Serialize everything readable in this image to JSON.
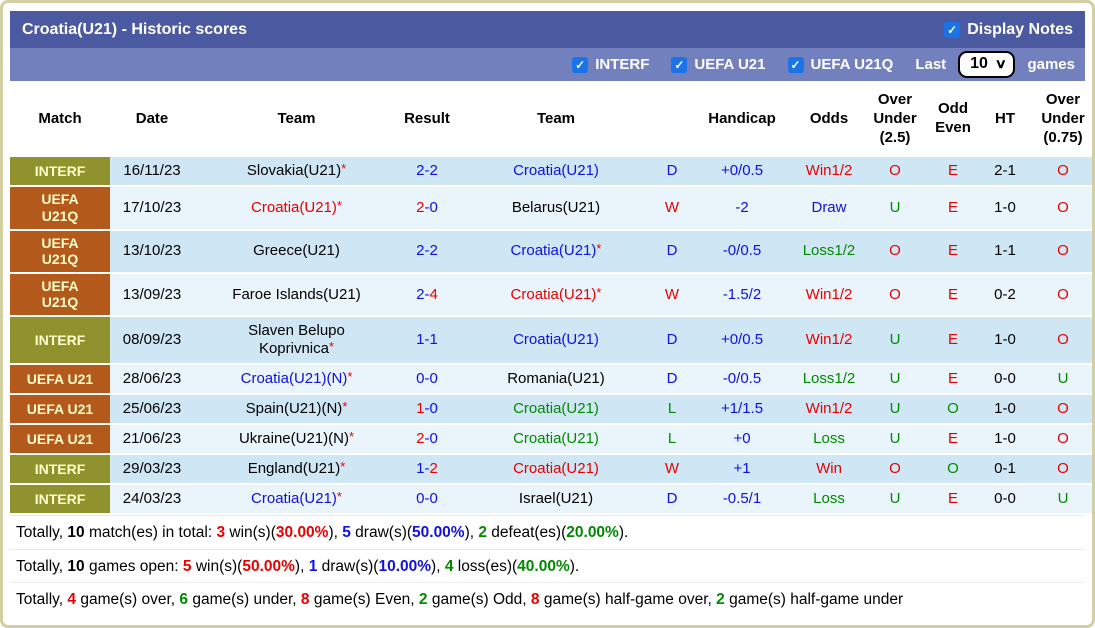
{
  "header": {
    "title": "Croatia(U21) - Historic scores",
    "display_notes": {
      "label": "Display Notes",
      "checked": true
    }
  },
  "filters": {
    "leagues": [
      {
        "label": "INTERF",
        "checked": true
      },
      {
        "label": "UEFA U21",
        "checked": true
      },
      {
        "label": "UEFA U21Q",
        "checked": true
      }
    ],
    "last_label": "Last",
    "last_value": "10",
    "games_label": "games"
  },
  "colors": {
    "red": "#e60000",
    "blue": "#1010e0",
    "green": "#008a00",
    "black": "#000000",
    "badge_olive": "#8f922d",
    "badge_brown": "#b2591b",
    "badge_text": "#ffffcc",
    "bar_dark": "#4b5aa0",
    "bar_light": "#7280bd",
    "row_odd": "#cfe6f5",
    "row_even": "#e9f4fb",
    "checkbox_blue": "#1a73e8",
    "frame_border": "#d2cfa2"
  },
  "table": {
    "columns": [
      "Match",
      "Date",
      "Team",
      "Result",
      "Team",
      "",
      "Handicap",
      "Odds",
      "Over Under (2.5)",
      "Odd Even",
      "HT",
      "Over Under (0.75)"
    ],
    "rows": [
      {
        "comp": "INTERF",
        "badge": "olive",
        "date": "16/11/23",
        "home": {
          "text": "Slovakia(U21)",
          "color": "k",
          "star": true
        },
        "score": {
          "h": "2",
          "a": "2",
          "hc": "b",
          "ac": "b"
        },
        "away": {
          "text": "Croatia(U21)",
          "color": "b",
          "star": false
        },
        "wdl": {
          "text": "D",
          "color": "b"
        },
        "handicap": {
          "text": "+0/0.5",
          "color": "b"
        },
        "odds": {
          "text": "Win1/2",
          "color": "r"
        },
        "ou25": {
          "text": "O",
          "color": "r"
        },
        "oe": {
          "text": "E",
          "color": "r"
        },
        "ht": "2-1",
        "ou075": {
          "text": "O",
          "color": "r"
        }
      },
      {
        "comp": "UEFA U21Q",
        "badge": "brown",
        "date": "17/10/23",
        "home": {
          "text": "Croatia(U21)",
          "color": "r",
          "star": true
        },
        "score": {
          "h": "2",
          "a": "0",
          "hc": "r",
          "ac": "b"
        },
        "away": {
          "text": "Belarus(U21)",
          "color": "k",
          "star": false
        },
        "wdl": {
          "text": "W",
          "color": "r"
        },
        "handicap": {
          "text": "-2",
          "color": "b"
        },
        "odds": {
          "text": "Draw",
          "color": "b"
        },
        "ou25": {
          "text": "U",
          "color": "g"
        },
        "oe": {
          "text": "E",
          "color": "r"
        },
        "ht": "1-0",
        "ou075": {
          "text": "O",
          "color": "r"
        }
      },
      {
        "comp": "UEFA U21Q",
        "badge": "brown",
        "date": "13/10/23",
        "home": {
          "text": "Greece(U21)",
          "color": "k",
          "star": false
        },
        "score": {
          "h": "2",
          "a": "2",
          "hc": "b",
          "ac": "b"
        },
        "away": {
          "text": "Croatia(U21)",
          "color": "b",
          "star": true
        },
        "wdl": {
          "text": "D",
          "color": "b"
        },
        "handicap": {
          "text": "-0/0.5",
          "color": "b"
        },
        "odds": {
          "text": "Loss1/2",
          "color": "g"
        },
        "ou25": {
          "text": "O",
          "color": "r"
        },
        "oe": {
          "text": "E",
          "color": "r"
        },
        "ht": "1-1",
        "ou075": {
          "text": "O",
          "color": "r"
        }
      },
      {
        "comp": "UEFA U21Q",
        "badge": "brown",
        "date": "13/09/23",
        "home": {
          "text": "Faroe Islands(U21)",
          "color": "k",
          "star": false
        },
        "score": {
          "h": "2",
          "a": "4",
          "hc": "b",
          "ac": "r"
        },
        "away": {
          "text": "Croatia(U21)",
          "color": "r",
          "star": true
        },
        "wdl": {
          "text": "W",
          "color": "r"
        },
        "handicap": {
          "text": "-1.5/2",
          "color": "b"
        },
        "odds": {
          "text": "Win1/2",
          "color": "r"
        },
        "ou25": {
          "text": "O",
          "color": "r"
        },
        "oe": {
          "text": "E",
          "color": "r"
        },
        "ht": "0-2",
        "ou075": {
          "text": "O",
          "color": "r"
        }
      },
      {
        "comp": "INTERF",
        "badge": "olive",
        "date": "08/09/23",
        "home": {
          "text": "Slaven Belupo Koprivnica",
          "color": "k",
          "star": true
        },
        "score": {
          "h": "1",
          "a": "1",
          "hc": "b",
          "ac": "b"
        },
        "away": {
          "text": "Croatia(U21)",
          "color": "b",
          "star": false
        },
        "wdl": {
          "text": "D",
          "color": "b"
        },
        "handicap": {
          "text": "+0/0.5",
          "color": "b"
        },
        "odds": {
          "text": "Win1/2",
          "color": "r"
        },
        "ou25": {
          "text": "U",
          "color": "g"
        },
        "oe": {
          "text": "E",
          "color": "r"
        },
        "ht": "1-0",
        "ou075": {
          "text": "O",
          "color": "r"
        }
      },
      {
        "comp": "UEFA U21",
        "badge": "brown",
        "date": "28/06/23",
        "home": {
          "text": "Croatia(U21)(N)",
          "color": "b",
          "star": true
        },
        "score": {
          "h": "0",
          "a": "0",
          "hc": "b",
          "ac": "b"
        },
        "away": {
          "text": "Romania(U21)",
          "color": "k",
          "star": false
        },
        "wdl": {
          "text": "D",
          "color": "b"
        },
        "handicap": {
          "text": "-0/0.5",
          "color": "b"
        },
        "odds": {
          "text": "Loss1/2",
          "color": "g"
        },
        "ou25": {
          "text": "U",
          "color": "g"
        },
        "oe": {
          "text": "E",
          "color": "r"
        },
        "ht": "0-0",
        "ou075": {
          "text": "U",
          "color": "g"
        }
      },
      {
        "comp": "UEFA U21",
        "badge": "brown",
        "date": "25/06/23",
        "home": {
          "text": "Spain(U21)(N)",
          "color": "k",
          "star": true
        },
        "score": {
          "h": "1",
          "a": "0",
          "hc": "r",
          "ac": "b"
        },
        "away": {
          "text": "Croatia(U21)",
          "color": "g",
          "star": false
        },
        "wdl": {
          "text": "L",
          "color": "g"
        },
        "handicap": {
          "text": "+1/1.5",
          "color": "b"
        },
        "odds": {
          "text": "Win1/2",
          "color": "r"
        },
        "ou25": {
          "text": "U",
          "color": "g"
        },
        "oe": {
          "text": "O",
          "color": "g"
        },
        "ht": "1-0",
        "ou075": {
          "text": "O",
          "color": "r"
        }
      },
      {
        "comp": "UEFA U21",
        "badge": "brown",
        "date": "21/06/23",
        "home": {
          "text": "Ukraine(U21)(N)",
          "color": "k",
          "star": true
        },
        "score": {
          "h": "2",
          "a": "0",
          "hc": "r",
          "ac": "b"
        },
        "away": {
          "text": "Croatia(U21)",
          "color": "g",
          "star": false
        },
        "wdl": {
          "text": "L",
          "color": "g"
        },
        "handicap": {
          "text": "+0",
          "color": "b"
        },
        "odds": {
          "text": "Loss",
          "color": "g"
        },
        "ou25": {
          "text": "U",
          "color": "g"
        },
        "oe": {
          "text": "E",
          "color": "r"
        },
        "ht": "1-0",
        "ou075": {
          "text": "O",
          "color": "r"
        }
      },
      {
        "comp": "INTERF",
        "badge": "olive",
        "date": "29/03/23",
        "home": {
          "text": "England(U21)",
          "color": "k",
          "star": true
        },
        "score": {
          "h": "1",
          "a": "2",
          "hc": "b",
          "ac": "r"
        },
        "away": {
          "text": "Croatia(U21)",
          "color": "r",
          "star": false
        },
        "wdl": {
          "text": "W",
          "color": "r"
        },
        "handicap": {
          "text": "+1",
          "color": "b"
        },
        "odds": {
          "text": "Win",
          "color": "r"
        },
        "ou25": {
          "text": "O",
          "color": "r"
        },
        "oe": {
          "text": "O",
          "color": "g"
        },
        "ht": "0-1",
        "ou075": {
          "text": "O",
          "color": "r"
        }
      },
      {
        "comp": "INTERF",
        "badge": "olive",
        "date": "24/03/23",
        "home": {
          "text": "Croatia(U21)",
          "color": "b",
          "star": true
        },
        "score": {
          "h": "0",
          "a": "0",
          "hc": "b",
          "ac": "b"
        },
        "away": {
          "text": "Israel(U21)",
          "color": "k",
          "star": false
        },
        "wdl": {
          "text": "D",
          "color": "b"
        },
        "handicap": {
          "text": "-0.5/1",
          "color": "b"
        },
        "odds": {
          "text": "Loss",
          "color": "g"
        },
        "ou25": {
          "text": "U",
          "color": "g"
        },
        "oe": {
          "text": "E",
          "color": "r"
        },
        "ht": "0-0",
        "ou075": {
          "text": "U",
          "color": "g"
        }
      }
    ]
  },
  "summary": [
    [
      {
        "t": "Totally, ",
        "c": "k",
        "b": false
      },
      {
        "t": "10",
        "c": "k",
        "b": true
      },
      {
        "t": " match(es) in total: ",
        "c": "k",
        "b": false
      },
      {
        "t": "3",
        "c": "r",
        "b": true
      },
      {
        "t": " win(s)(",
        "c": "k",
        "b": false
      },
      {
        "t": "30.00%",
        "c": "r",
        "b": true
      },
      {
        "t": "), ",
        "c": "k",
        "b": false
      },
      {
        "t": "5",
        "c": "b",
        "b": true
      },
      {
        "t": " draw(s)(",
        "c": "k",
        "b": false
      },
      {
        "t": "50.00%",
        "c": "b",
        "b": true
      },
      {
        "t": "), ",
        "c": "k",
        "b": false
      },
      {
        "t": "2",
        "c": "g",
        "b": true
      },
      {
        "t": " defeat(es)(",
        "c": "k",
        "b": false
      },
      {
        "t": "20.00%",
        "c": "g",
        "b": true
      },
      {
        "t": ").",
        "c": "k",
        "b": false
      }
    ],
    [
      {
        "t": "Totally, ",
        "c": "k",
        "b": false
      },
      {
        "t": "10",
        "c": "k",
        "b": true
      },
      {
        "t": " games open: ",
        "c": "k",
        "b": false
      },
      {
        "t": "5",
        "c": "r",
        "b": true
      },
      {
        "t": " win(s)(",
        "c": "k",
        "b": false
      },
      {
        "t": "50.00%",
        "c": "r",
        "b": true
      },
      {
        "t": "), ",
        "c": "k",
        "b": false
      },
      {
        "t": "1",
        "c": "b",
        "b": true
      },
      {
        "t": " draw(s)(",
        "c": "k",
        "b": false
      },
      {
        "t": "10.00%",
        "c": "b",
        "b": true
      },
      {
        "t": "), ",
        "c": "k",
        "b": false
      },
      {
        "t": "4",
        "c": "g",
        "b": true
      },
      {
        "t": " loss(es)(",
        "c": "k",
        "b": false
      },
      {
        "t": "40.00%",
        "c": "g",
        "b": true
      },
      {
        "t": ").",
        "c": "k",
        "b": false
      }
    ],
    [
      {
        "t": "Totally, ",
        "c": "k",
        "b": false
      },
      {
        "t": "4",
        "c": "r",
        "b": true
      },
      {
        "t": " game(s) over, ",
        "c": "k",
        "b": false
      },
      {
        "t": "6",
        "c": "g",
        "b": true
      },
      {
        "t": " game(s) under, ",
        "c": "k",
        "b": false
      },
      {
        "t": "8",
        "c": "r",
        "b": true
      },
      {
        "t": " game(s) Even, ",
        "c": "k",
        "b": false
      },
      {
        "t": "2",
        "c": "g",
        "b": true
      },
      {
        "t": " game(s) Odd, ",
        "c": "k",
        "b": false
      },
      {
        "t": "8",
        "c": "r",
        "b": true
      },
      {
        "t": " game(s) half-game over, ",
        "c": "k",
        "b": false
      },
      {
        "t": "2",
        "c": "g",
        "b": true
      },
      {
        "t": " game(s) half-game under",
        "c": "k",
        "b": false
      }
    ]
  ]
}
